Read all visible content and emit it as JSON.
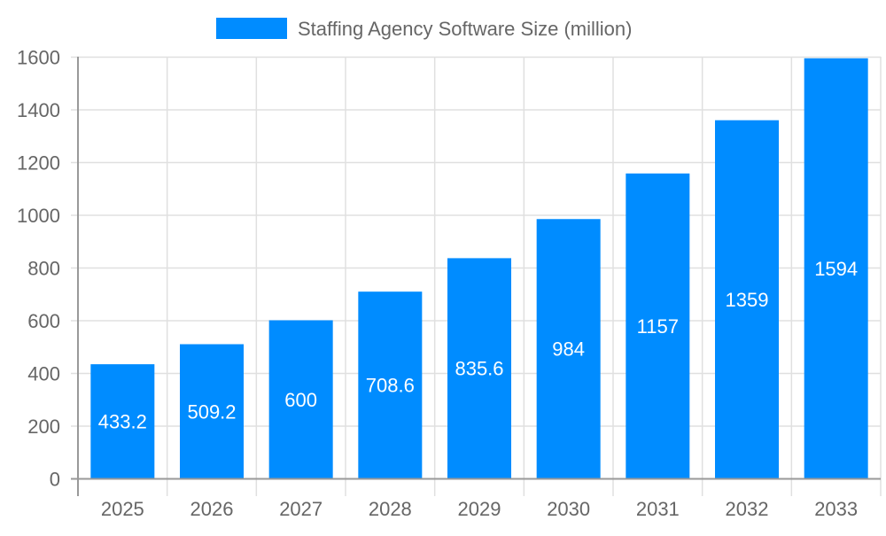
{
  "chart_data": {
    "type": "bar",
    "title": "",
    "xlabel": "",
    "ylabel": "",
    "categories": [
      "2025",
      "2026",
      "2027",
      "2028",
      "2029",
      "2030",
      "2031",
      "2032",
      "2033"
    ],
    "series": [
      {
        "name": "Staffing Agency Software Size (million)",
        "values": [
          433.2,
          509.2,
          600,
          708.6,
          835.6,
          984,
          1157,
          1359,
          1594
        ],
        "data_labels": [
          "433.2",
          "509.2",
          "600",
          "708.6",
          "835.6",
          "984",
          "1157",
          "1359",
          "1594"
        ],
        "color": "#008cff"
      }
    ],
    "ylim": [
      0,
      1600
    ],
    "yticks": [
      "0",
      "200",
      "400",
      "600",
      "800",
      "1000",
      "1200",
      "1400",
      "1600"
    ],
    "grid": true,
    "legend": "top-center"
  }
}
